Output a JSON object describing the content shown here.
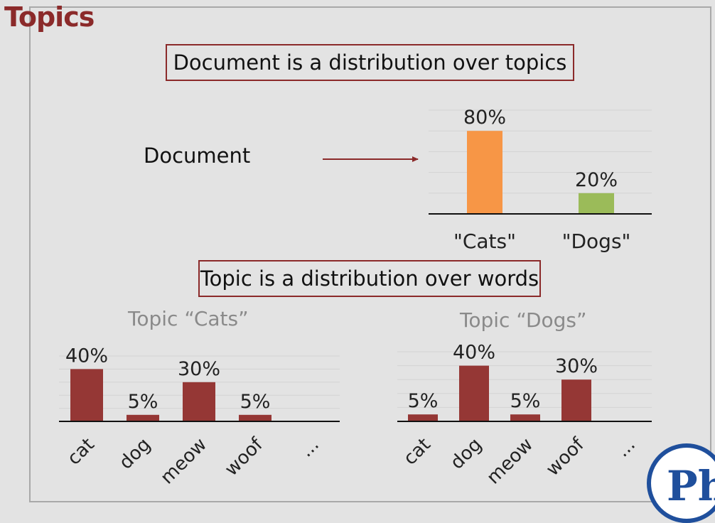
{
  "header": {
    "title": "Topics"
  },
  "box1_text": "Document is a distribution over topics",
  "box2_text": "Topic is a distribution over words",
  "document_label": "Document",
  "colors": {
    "accent": "#8b2a2a",
    "cats_bar": "#f79646",
    "dogs_bar": "#9bbb59",
    "word_bar": "#953735",
    "logo_blue": "#1f4f9c"
  },
  "chart_data": [
    {
      "type": "bar",
      "title": "",
      "categories": [
        "\"Cats\"",
        "\"Dogs\""
      ],
      "values": [
        80,
        20
      ],
      "value_labels": [
        "80%",
        "20%"
      ],
      "colors": [
        "#f79646",
        "#9bbb59"
      ],
      "ylim": [
        0,
        100
      ],
      "grid": true
    },
    {
      "type": "bar",
      "title": "Topic “Cats”",
      "categories": [
        "cat",
        "dog",
        "meow",
        "woof",
        "..."
      ],
      "values": [
        40,
        5,
        30,
        5,
        null
      ],
      "value_labels": [
        "40%",
        "5%",
        "30%",
        "5%",
        ""
      ],
      "ylim": [
        0,
        50
      ],
      "grid": true
    },
    {
      "type": "bar",
      "title": "Topic “Dogs”",
      "categories": [
        "cat",
        "dog",
        "meow",
        "woof",
        "..."
      ],
      "values": [
        5,
        40,
        5,
        30,
        null
      ],
      "value_labels": [
        "5%",
        "40%",
        "5%",
        "30%",
        ""
      ],
      "ylim": [
        0,
        50
      ],
      "grid": true
    }
  ]
}
